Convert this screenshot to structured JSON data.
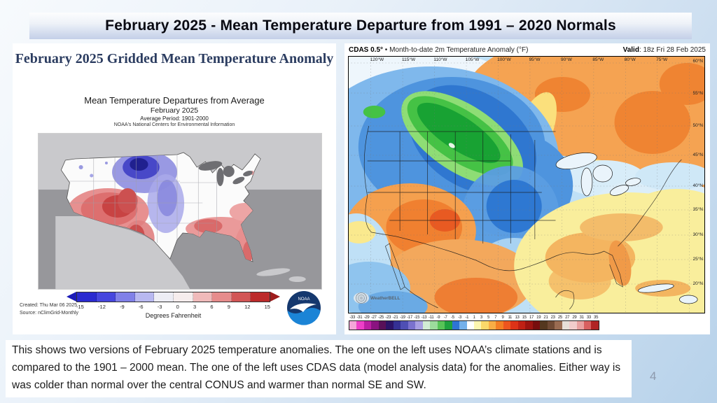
{
  "slide": {
    "title": "February 2025 - Mean Temperature Departure from 1991 – 2020 Normals",
    "page_number": "4",
    "caption": "This shows two versions of February 2025 temperature anomalies. The one on the left uses NOAA’s climate stations and is compared to the 1901 – 2000 mean.  The one of the left uses CDAS data (model analysis data) for the anomalies.  Either way is was colder than normal over the central CONUS and warmer than normal SE and SW."
  },
  "left_panel": {
    "title": "February 2025 Gridded Mean Temperature Anomaly",
    "map_title": "Mean Temperature Departures from Average",
    "map_subtitle": "February 2025",
    "map_period": "Average Period: 1901-2000",
    "map_org": "NOAA's National Centers for Environmental Information",
    "created": "Created: Thu Mar 06 2025",
    "source": "Source: nClimGrid-Monthly",
    "units_label": "Degrees Fahrenheit",
    "noaa_logo_text": "NOAA",
    "colorbar": {
      "ticks": [
        "-15",
        "-12",
        "-9",
        "-6",
        "-3",
        "0",
        "3",
        "6",
        "9",
        "12",
        "15"
      ],
      "colors": [
        "#2a2ad0",
        "#4646de",
        "#8080e8",
        "#b8b8f0",
        "#ededf4",
        "#f6eded",
        "#f0baba",
        "#e68c8c",
        "#d25555",
        "#bc2a2a"
      ],
      "arrow_left_color": "#1c1cb8",
      "arrow_right_color": "#9e1c1c"
    }
  },
  "right_panel": {
    "header_model": "CDAS 0.5°",
    "header_rest": " • Month-to-date 2m Temperature Anomaly (°F)",
    "valid_label": "Valid",
    "valid_value": ": 18z Fri 28 Feb 2025",
    "watermark": "WeatherBELL",
    "lon_labels": [
      "120°W",
      "115°W",
      "110°W",
      "105°W",
      "100°W",
      "95°W",
      "90°W",
      "85°W",
      "80°W",
      "75°W"
    ],
    "lat_labels": [
      "60°N",
      "55°N",
      "50°N",
      "45°N",
      "40°N",
      "35°N",
      "30°N",
      "25°N",
      "20°N"
    ],
    "colorbar": {
      "labels": [
        "-33",
        "-31",
        "-29",
        "-27",
        "-25",
        "-23",
        "-21",
        "-19",
        "-17",
        "-15",
        "-13",
        "-11",
        "-9",
        "-7",
        "-5",
        "-3",
        "-1",
        "1",
        "3",
        "5",
        "7",
        "9",
        "11",
        "13",
        "15",
        "17",
        "19",
        "21",
        "23",
        "25",
        "27",
        "29",
        "31",
        "33",
        "35"
      ],
      "colors": [
        "#f4a6d8",
        "#ee3fc8",
        "#bc1fa4",
        "#8a1380",
        "#581058",
        "#2c1468",
        "#353194",
        "#4f4fb4",
        "#7b72ce",
        "#a89fe2",
        "#d2ecd4",
        "#9cdc9c",
        "#57c457",
        "#1ea23e",
        "#2e74d4",
        "#74b0ea",
        "#ffffff",
        "#fdf6b0",
        "#fbd96a",
        "#f9ae45",
        "#f47f24",
        "#ee551e",
        "#dd3318",
        "#c02014",
        "#9c1410",
        "#770d0d",
        "#54381f",
        "#6f4a34",
        "#9a6c52",
        "#e7dfd8",
        "#f2cccc",
        "#e9a0a0",
        "#d86060",
        "#b02424"
      ]
    }
  }
}
